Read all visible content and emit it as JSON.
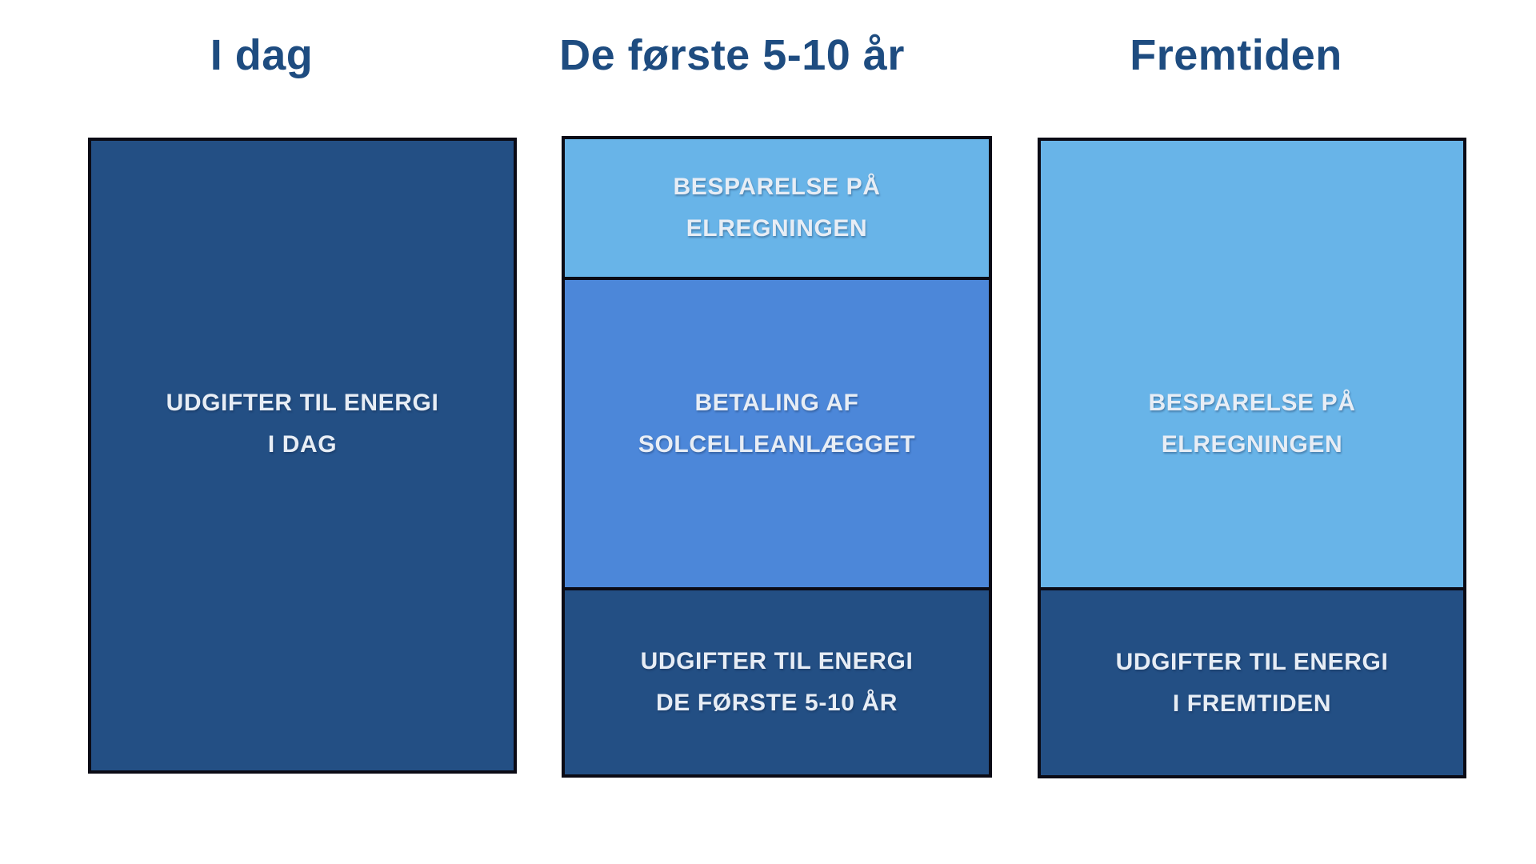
{
  "colors": {
    "background": "#FFFFFF",
    "dark_blue": "#234F84",
    "medium_blue": "#4C87D9",
    "light_blue": "#68B4E8",
    "outline": "#0B0B15",
    "title_text": "#1E4C80",
    "label_text": "#E7EDF5"
  },
  "columns": [
    {
      "title": "I dag",
      "segments": [
        {
          "name": "udgifter-til-energi-i-dag",
          "fill": "#234F84",
          "lines": [
            "UDGIFTER TIL ENERGI",
            "I DAG"
          ]
        }
      ]
    },
    {
      "title": "De første 5-10 år",
      "segments": [
        {
          "name": "besparelse-paa-elregningen",
          "fill": "#68B4E8",
          "lines": [
            "BESPARELSE PÅ",
            "ELREGNINGEN"
          ]
        },
        {
          "name": "betaling-af-solcelleanlaegget",
          "fill": "#4C87D9",
          "lines": [
            "BETALING AF",
            "SOLCELLEANLÆGGET"
          ]
        },
        {
          "name": "udgifter-til-energi-de-foerste-5-10-aar",
          "fill": "#234F84",
          "lines": [
            "UDGIFTER TIL ENERGI",
            "DE FØRSTE 5-10 ÅR"
          ]
        }
      ]
    },
    {
      "title": "Fremtiden",
      "segments": [
        {
          "name": "besparelse-paa-elregningen",
          "fill": "#68B4E8",
          "lines": [
            "BESPARELSE PÅ",
            "ELREGNINGEN"
          ]
        },
        {
          "name": "udgifter-til-energi-i-fremtiden",
          "fill": "#234F84",
          "lines": [
            "UDGIFTER TIL ENERGI",
            "I FREMTIDEN"
          ]
        }
      ]
    }
  ]
}
